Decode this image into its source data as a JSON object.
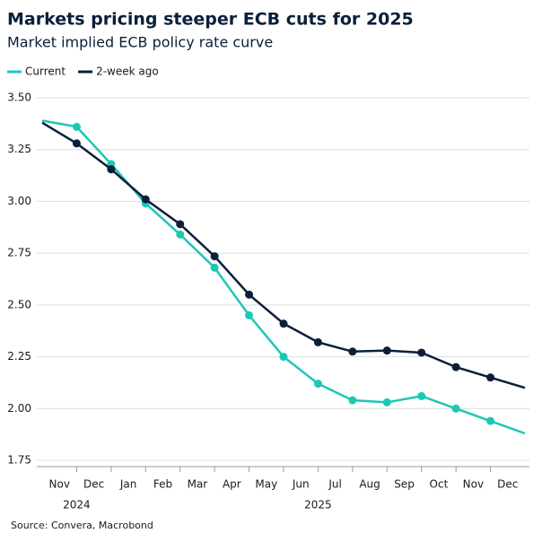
{
  "chart_data": {
    "type": "line",
    "title": "Markets pricing steeper ECB cuts for 2025",
    "subtitle": "Market implied ECB policy rate curve",
    "source": "Source: Convera, Macrobond",
    "categories": [
      null,
      "Nov",
      "Dec",
      "Jan",
      "Feb",
      "Mar",
      "Apr",
      "May",
      "Jun",
      "Jul",
      "Aug",
      "Sep",
      "Oct",
      "Nov",
      "Dec"
    ],
    "year_labels": [
      "2024",
      "2025"
    ],
    "series": [
      {
        "name": "Current",
        "color": "#1cc8b5",
        "values": [
          3.39,
          3.36,
          3.18,
          2.99,
          2.84,
          2.68,
          2.45,
          2.25,
          2.12,
          2.04,
          2.03,
          2.06,
          2.0,
          1.94,
          1.88
        ]
      },
      {
        "name": "2-week ago",
        "color": "#0b1f3a",
        "values": [
          3.38,
          3.28,
          3.155,
          3.01,
          2.89,
          2.735,
          2.55,
          2.41,
          2.32,
          2.275,
          2.28,
          2.27,
          2.2,
          2.15,
          2.1
        ]
      }
    ],
    "ylim": [
      1.75,
      3.5
    ],
    "yticks": [
      {
        "value": 1.75,
        "label": "1.75"
      },
      {
        "value": 2,
        "label": "2.00"
      },
      {
        "value": 2.25,
        "label": "2.25"
      },
      {
        "value": 2.5,
        "label": "2.50"
      },
      {
        "value": 2.75,
        "label": "2.75"
      },
      {
        "value": 3,
        "label": "3.00"
      },
      {
        "value": 3.25,
        "label": "3.25"
      },
      {
        "value": 3.5,
        "label": "3.50"
      }
    ],
    "grid": true,
    "legend": "top-left"
  }
}
